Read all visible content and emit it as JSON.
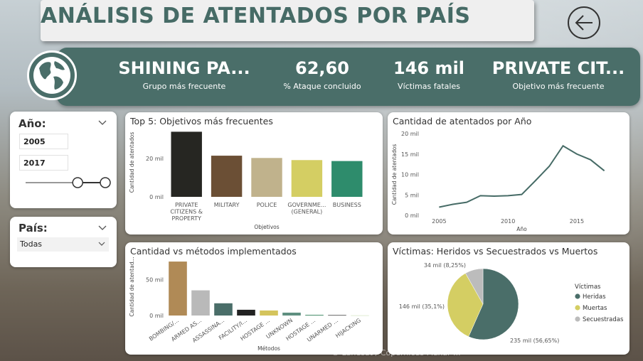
{
  "page": {
    "title": "ANÁLISIS DE ATENTADOS POR PAÍS",
    "watermark": "© Landsat / Copernicus Maxar ..."
  },
  "kpis": [
    {
      "value": "SHINING PA...",
      "label": "Grupo más frecuente"
    },
    {
      "value": "62,60",
      "label": "% Ataque concluido"
    },
    {
      "value": "146 mil",
      "label": "Víctimas fatales"
    },
    {
      "value": "PRIVATE CIT...",
      "label": "Objetivo más frecuente"
    }
  ],
  "slicers": {
    "year": {
      "label": "Año:",
      "from": "2005",
      "to": "2017",
      "slider_range_fraction": [
        0.6,
        1.0
      ]
    },
    "country": {
      "label": "País:",
      "selected": "Todas"
    }
  },
  "colors": {
    "accent": "#4a6e69",
    "title": "#466b66"
  },
  "icons": {
    "back": "arrow-left-circle-icon",
    "globe": "globe-icon",
    "chevron": "chevron-down-icon"
  },
  "chart_data": [
    {
      "type": "bar",
      "title": "Top 5: Objetivos más frecuentes",
      "xlabel": "Objetivos",
      "ylabel": "Cantidad de atentados",
      "categories": [
        "PRIVATE CITIZENS & PROPERTY",
        "MILITARY",
        "POLICE",
        "GOVERNME... (GENERAL)",
        "BUSINESS"
      ],
      "category_labels": [
        [
          "PRIVATE",
          "CITIZENS &",
          "PROPERTY"
        ],
        [
          "MILITARY"
        ],
        [
          "POLICE"
        ],
        [
          "GOVERNME...",
          "(GENERAL)"
        ],
        [
          "BUSINESS"
        ]
      ],
      "values": [
        34000,
        21500,
        20300,
        19200,
        18700
      ],
      "colors": [
        "#262622",
        "#6b4f35",
        "#c0b28c",
        "#d4ce63",
        "#2e8c6c"
      ],
      "yticks": [
        {
          "v": 0,
          "t": "0 mil"
        },
        {
          "v": 20000,
          "t": "20 mil"
        }
      ],
      "ylim": [
        0,
        36000
      ]
    },
    {
      "type": "line",
      "title": "Cantidad de atentados por Año",
      "xlabel": "Año",
      "ylabel": "Cantidad de atentados",
      "x": [
        2005,
        2006,
        2007,
        2008,
        2009,
        2010,
        2011,
        2012,
        2013,
        2014,
        2015,
        2016,
        2017
      ],
      "y": [
        2000,
        2700,
        3200,
        4800,
        4700,
        4800,
        5100,
        8500,
        12000,
        17000,
        15000,
        13600,
        10900
      ],
      "xticks": [
        {
          "v": 2005,
          "t": "2005"
        },
        {
          "v": 2010,
          "t": "2010"
        },
        {
          "v": 2015,
          "t": "2015"
        }
      ],
      "yticks": [
        {
          "v": 0,
          "t": "0 mil"
        },
        {
          "v": 5000,
          "t": "5 mil"
        },
        {
          "v": 10000,
          "t": "10 mil"
        },
        {
          "v": 15000,
          "t": "15 mil"
        },
        {
          "v": 20000,
          "t": "20 mil"
        }
      ],
      "xlim": [
        2004,
        2018
      ],
      "ylim": [
        0,
        20000
      ],
      "color": "#466b66"
    },
    {
      "type": "bar",
      "title": "Cantidad vs métodos implementados",
      "xlabel": "Métodos",
      "ylabel": "Cantidad de atentad...",
      "categories": [
        "BOMBING/...",
        "ARMED AS...",
        "ASSASSINA...",
        "FACILITY/I...",
        "HOSTAGE ...",
        "UNKNOWN",
        "HOSTAGE ...",
        "UNARMED ...",
        "HIJACKING"
      ],
      "values": [
        75000,
        35000,
        17000,
        8000,
        7000,
        4000,
        1000,
        700,
        300
      ],
      "colors": [
        "#b08a56",
        "#b9b9b9",
        "#4a6e69",
        "#222222",
        "#d4c45c",
        "#5e8f80",
        "#4a8f6c",
        "#444444",
        "#d8e8c8"
      ],
      "yticks": [
        {
          "v": 0,
          "t": "0 mil"
        },
        {
          "v": 50000,
          "t": "50 mil"
        }
      ],
      "ylim": [
        0,
        80000
      ]
    },
    {
      "type": "pie",
      "title": "Víctimas: Heridos vs Secuestrados vs Muertos",
      "legend_title": "Víctimas",
      "slices": [
        {
          "name": "Heridas",
          "value": 235,
          "label": "235 mil (56,65%)",
          "color": "#4a6e69"
        },
        {
          "name": "Muertas",
          "value": 146,
          "label": "146 mil (35,1%)",
          "color": "#d4ce63"
        },
        {
          "name": "Secuestradas",
          "value": 34,
          "label": "34 mil (8,25%)",
          "color": "#bcbcbc"
        }
      ]
    }
  ]
}
